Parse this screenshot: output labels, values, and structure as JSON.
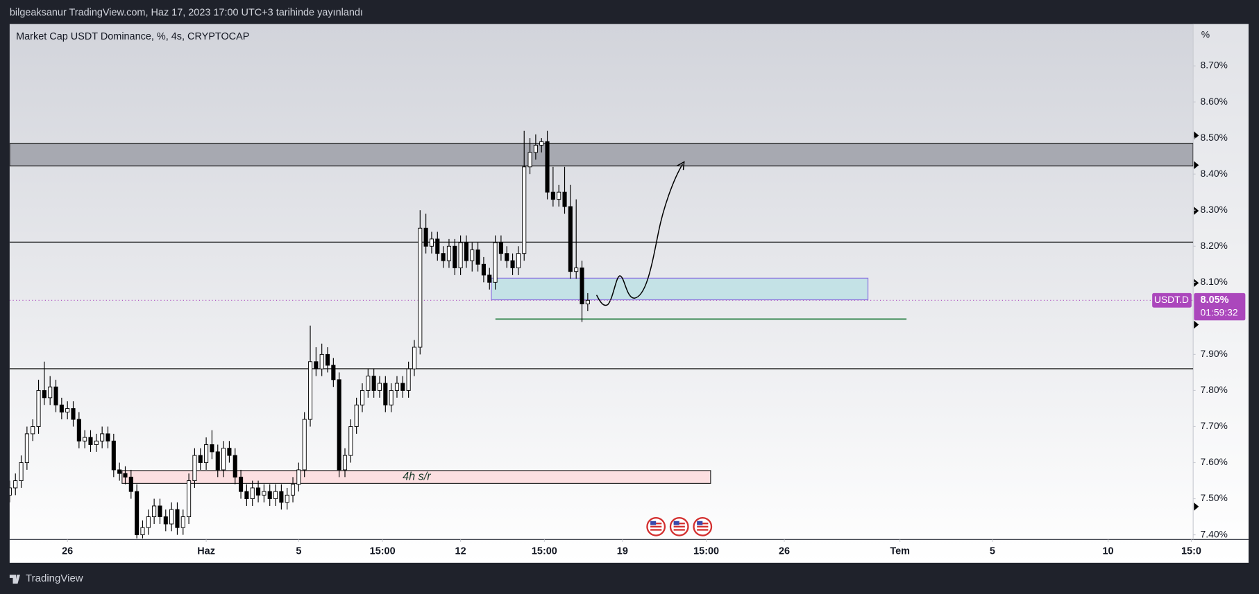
{
  "header": {
    "caption": "bilgeaksanur TradingView.com, Haz 17, 2023 17:00 UTC+3 tarihinde yayınlandı"
  },
  "footer": {
    "brand": "TradingView"
  },
  "chart_data": {
    "type": "candlestick",
    "title": "Market Cap USDT Dominance, %, 4s, CRYPTOCAP",
    "y_unit": "%",
    "annotation": "4h s/r",
    "symbol_tag": "USDT.D",
    "last_price": {
      "value": 8.05,
      "label": "8.05%"
    },
    "countdown": "01:59:32",
    "xlim": [
      -7.5,
      43.68
    ],
    "xticks": [
      {
        "value": -5,
        "label": "26"
      },
      {
        "value": 1,
        "label": "Haz"
      },
      5,
      {
        "value": 8.625,
        "label": "15:00"
      },
      12,
      {
        "value": 15.625,
        "label": "15:00"
      },
      19,
      {
        "value": 22.625,
        "label": "15:00"
      },
      26,
      {
        "value": 31,
        "label": "Tem"
      },
      {
        "value": 35,
        "label": "5"
      },
      {
        "value": 40,
        "label": "10"
      },
      {
        "value": 43.6,
        "label": "15:0"
      }
    ],
    "ylim": [
      7.387,
      8.816
    ],
    "yticks": [
      {
        "value": 8.7,
        "label": "8.70%"
      },
      {
        "value": 8.6,
        "label": "8.60%"
      },
      {
        "value": 8.5,
        "label": "8.50%"
      },
      {
        "value": 8.4,
        "label": "8.40%"
      },
      {
        "value": 8.3,
        "label": "8.30%"
      },
      {
        "value": 8.2,
        "label": "8.20%"
      },
      {
        "value": 8.1,
        "label": "8.10%"
      },
      {
        "value": 7.9,
        "label": "7.90%"
      },
      {
        "value": 7.8,
        "label": "7.80%"
      },
      {
        "value": 7.7,
        "label": "7.70%"
      },
      {
        "value": 7.6,
        "label": "7.60%"
      },
      {
        "value": 7.5,
        "label": "7.50%"
      },
      {
        "value": 7.4,
        "label": "7.40%"
      }
    ],
    "up_color": "#ffffff",
    "down_color": "#000000",
    "wick_color": "#000000",
    "last_price_color": "#ab47bc",
    "x": [
      -7.5,
      -7.25,
      -7,
      -6.75,
      -6.5,
      -6.25,
      -6,
      -5.75,
      -5.5,
      -5.25,
      -5,
      -4.75,
      -4.5,
      -4.25,
      -4,
      -3.75,
      -3.5,
      -3.25,
      -3,
      -2.75,
      -2.5,
      -2.25,
      -2,
      -1.75,
      -1.5,
      -1.25,
      -1,
      -0.75,
      -0.5,
      -0.25,
      0,
      0.25,
      0.5,
      0.75,
      1,
      1.25,
      1.5,
      1.75,
      2,
      2.25,
      2.5,
      2.75,
      3,
      3.25,
      3.5,
      3.75,
      4,
      4.25,
      4.5,
      4.75,
      5,
      5.25,
      5.5,
      5.75,
      6,
      6.25,
      6.5,
      6.75,
      7,
      7.25,
      7.5,
      7.75,
      8,
      8.25,
      8.5,
      8.75,
      9,
      9.25,
      9.5,
      9.75,
      10,
      10.25,
      10.5,
      10.75,
      11,
      11.25,
      11.5,
      11.75,
      12,
      12.25,
      12.5,
      12.75,
      13,
      13.25,
      13.5,
      13.75,
      14,
      14.25,
      14.5,
      14.75,
      15,
      15.25,
      15.5,
      15.75,
      16,
      16.25,
      16.5,
      16.75,
      17,
      17.25,
      17.5
    ],
    "open": [
      7.51,
      7.53,
      7.55,
      7.6,
      7.68,
      7.7,
      7.8,
      7.78,
      7.81,
      7.76,
      7.74,
      7.75,
      7.72,
      7.66,
      7.67,
      7.65,
      7.66,
      7.68,
      7.66,
      7.58,
      7.57,
      7.56,
      7.52,
      7.4,
      7.42,
      7.45,
      7.48,
      7.45,
      7.43,
      7.47,
      7.42,
      7.45,
      7.55,
      7.62,
      7.6,
      7.65,
      7.63,
      7.58,
      7.64,
      7.62,
      7.56,
      7.52,
      7.5,
      7.53,
      7.51,
      7.52,
      7.5,
      7.52,
      7.49,
      7.51,
      7.54,
      7.58,
      7.72,
      7.88,
      7.86,
      7.9,
      7.87,
      7.83,
      7.58,
      7.62,
      7.7,
      7.76,
      7.8,
      7.84,
      7.8,
      7.82,
      7.76,
      7.8,
      7.82,
      7.8,
      7.86,
      7.92,
      8.25,
      8.2,
      8.22,
      8.18,
      8.16,
      8.2,
      8.14,
      8.21,
      8.16,
      8.19,
      8.15,
      8.12,
      8.1,
      8.21,
      8.18,
      8.16,
      8.14,
      8.18,
      8.42,
      8.46,
      8.48,
      8.49,
      8.35,
      8.33,
      8.35,
      8.31,
      8.13,
      8.14,
      8.04
    ],
    "high": [
      7.55,
      7.57,
      7.62,
      7.7,
      7.72,
      7.83,
      7.88,
      7.84,
      7.83,
      7.78,
      7.77,
      7.77,
      7.74,
      7.69,
      7.69,
      7.68,
      7.7,
      7.7,
      7.68,
      7.6,
      7.59,
      7.58,
      7.54,
      7.44,
      7.47,
      7.5,
      7.5,
      7.47,
      7.49,
      7.49,
      7.47,
      7.57,
      7.64,
      7.64,
      7.67,
      7.69,
      7.65,
      7.66,
      7.66,
      7.64,
      7.58,
      7.54,
      7.55,
      7.55,
      7.54,
      7.54,
      7.54,
      7.54,
      7.53,
      7.56,
      7.6,
      7.74,
      7.98,
      7.92,
      7.93,
      7.92,
      7.89,
      7.85,
      7.64,
      7.72,
      7.78,
      7.82,
      7.86,
      7.86,
      7.84,
      7.84,
      7.82,
      7.84,
      7.84,
      7.88,
      7.94,
      8.3,
      8.29,
      8.24,
      8.24,
      8.2,
      8.22,
      8.22,
      8.23,
      8.23,
      8.21,
      8.21,
      8.17,
      8.14,
      8.23,
      8.23,
      8.2,
      8.18,
      8.2,
      8.52,
      8.5,
      8.51,
      8.5,
      8.52,
      8.42,
      8.37,
      8.42,
      8.37,
      8.33,
      8.16,
      8.07
    ],
    "low": [
      7.49,
      7.51,
      7.53,
      7.58,
      7.66,
      7.68,
      7.76,
      7.76,
      7.74,
      7.72,
      7.72,
      7.7,
      7.64,
      7.64,
      7.63,
      7.63,
      7.64,
      7.64,
      7.56,
      7.55,
      7.54,
      7.5,
      7.39,
      7.39,
      7.4,
      7.43,
      7.43,
      7.41,
      7.41,
      7.4,
      7.4,
      7.43,
      7.53,
      7.58,
      7.58,
      7.61,
      7.56,
      7.56,
      7.6,
      7.54,
      7.5,
      7.48,
      7.48,
      7.49,
      7.49,
      7.48,
      7.48,
      7.47,
      7.47,
      7.49,
      7.52,
      7.56,
      7.7,
      7.84,
      7.84,
      7.85,
      7.81,
      7.56,
      7.56,
      7.6,
      7.68,
      7.74,
      7.78,
      7.78,
      7.78,
      7.74,
      7.74,
      7.78,
      7.78,
      7.78,
      7.84,
      7.9,
      8.18,
      8.18,
      8.16,
      8.14,
      8.14,
      8.12,
      8.12,
      8.14,
      8.13,
      8.13,
      8.1,
      8.08,
      8.08,
      8.16,
      8.14,
      8.12,
      8.12,
      8.16,
      8.4,
      8.44,
      8.46,
      8.33,
      8.31,
      8.31,
      8.29,
      8.11,
      8.11,
      7.99,
      8.02
    ],
    "close": [
      7.53,
      7.55,
      7.6,
      7.68,
      7.7,
      7.8,
      7.78,
      7.81,
      7.76,
      7.74,
      7.75,
      7.72,
      7.66,
      7.67,
      7.65,
      7.66,
      7.68,
      7.66,
      7.58,
      7.57,
      7.56,
      7.52,
      7.4,
      7.42,
      7.45,
      7.48,
      7.45,
      7.43,
      7.47,
      7.42,
      7.45,
      7.55,
      7.62,
      7.6,
      7.65,
      7.63,
      7.58,
      7.64,
      7.62,
      7.56,
      7.52,
      7.5,
      7.53,
      7.51,
      7.52,
      7.5,
      7.52,
      7.49,
      7.51,
      7.54,
      7.58,
      7.72,
      7.88,
      7.86,
      7.9,
      7.87,
      7.83,
      7.58,
      7.62,
      7.7,
      7.76,
      7.8,
      7.84,
      7.8,
      7.82,
      7.76,
      7.8,
      7.82,
      7.8,
      7.86,
      7.92,
      8.25,
      8.2,
      8.22,
      8.18,
      8.16,
      8.2,
      8.14,
      8.21,
      8.16,
      8.19,
      8.15,
      8.12,
      8.1,
      8.21,
      8.18,
      8.16,
      8.14,
      8.18,
      8.42,
      8.46,
      8.48,
      8.49,
      8.35,
      8.33,
      8.35,
      8.31,
      8.13,
      8.14,
      8.04,
      8.05
    ]
  }
}
